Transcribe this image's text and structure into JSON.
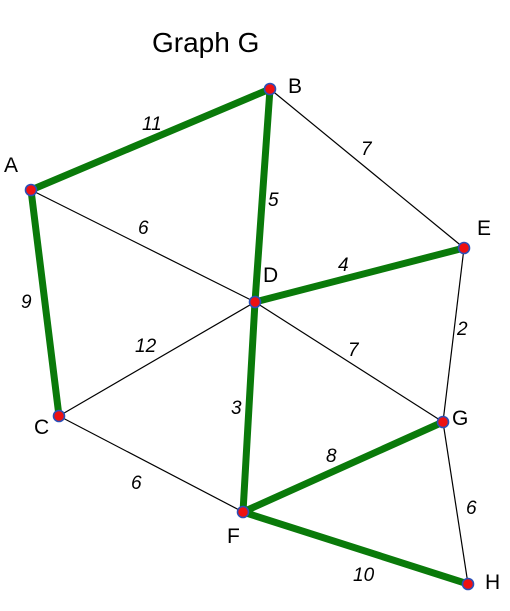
{
  "title": "Graph G",
  "colors": {
    "tree_edge": "#0a7a0a",
    "plain_edge": "#000000",
    "vertex_fill": "#ee1111",
    "vertex_stroke": "#2a4fb8"
  },
  "nodes": [
    {
      "id": "A",
      "label": "A"
    },
    {
      "id": "B",
      "label": "B"
    },
    {
      "id": "C",
      "label": "C"
    },
    {
      "id": "D",
      "label": "D"
    },
    {
      "id": "E",
      "label": "E"
    },
    {
      "id": "F",
      "label": "F"
    },
    {
      "id": "G",
      "label": "G"
    },
    {
      "id": "H",
      "label": "H"
    }
  ],
  "edges": [
    {
      "from": "A",
      "to": "B",
      "weight": "11",
      "in_tree": true
    },
    {
      "from": "B",
      "to": "E",
      "weight": "7",
      "in_tree": false
    },
    {
      "from": "B",
      "to": "D",
      "weight": "5",
      "in_tree": true
    },
    {
      "from": "A",
      "to": "D",
      "weight": "6",
      "in_tree": false
    },
    {
      "from": "A",
      "to": "C",
      "weight": "9",
      "in_tree": true
    },
    {
      "from": "D",
      "to": "E",
      "weight": "4",
      "in_tree": true
    },
    {
      "from": "C",
      "to": "D",
      "weight": "12",
      "in_tree": false
    },
    {
      "from": "D",
      "to": "G",
      "weight": "7",
      "in_tree": false
    },
    {
      "from": "E",
      "to": "G",
      "weight": "2",
      "in_tree": false
    },
    {
      "from": "D",
      "to": "F",
      "weight": "3",
      "in_tree": true
    },
    {
      "from": "C",
      "to": "F",
      "weight": "6",
      "in_tree": false
    },
    {
      "from": "F",
      "to": "G",
      "weight": "8",
      "in_tree": true
    },
    {
      "from": "G",
      "to": "H",
      "weight": "6",
      "in_tree": false
    },
    {
      "from": "F",
      "to": "H",
      "weight": "10",
      "in_tree": true
    }
  ]
}
